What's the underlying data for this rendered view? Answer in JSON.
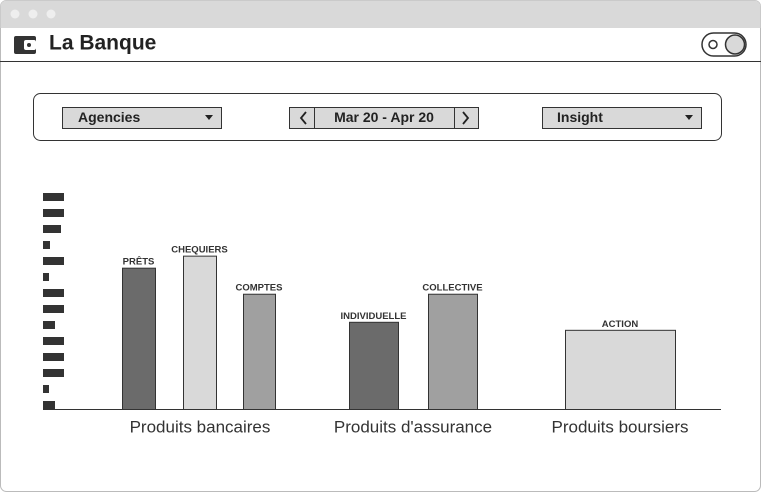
{
  "header": {
    "title": "La Banque"
  },
  "filters": {
    "agency": "Agencies",
    "period": "Mar 20 - Apr 20",
    "view": "Insight"
  },
  "chart_data": {
    "type": "bar",
    "ylim": [
      0,
      216
    ],
    "groups": [
      {
        "label": "Produits bancaires",
        "bars": [
          {
            "name": "PRÊTS",
            "value": 141,
            "color": "#6b6b6b"
          },
          {
            "name": "CHEQUIERS",
            "value": 153,
            "color": "#d9d9d9"
          },
          {
            "name": "COMPTES",
            "value": 115,
            "color": "#a0a0a0"
          }
        ]
      },
      {
        "label": "Produits d'assurance",
        "bars": [
          {
            "name": "INDIVIDUELLE",
            "value": 87,
            "color": "#6b6b6b"
          },
          {
            "name": "COLLECTIVE",
            "value": 115,
            "color": "#a0a0a0"
          }
        ]
      },
      {
        "label": "Produits boursiers",
        "bars": [
          {
            "name": "ACTION",
            "value": 79,
            "color": "#d9d9d9"
          }
        ]
      }
    ]
  }
}
